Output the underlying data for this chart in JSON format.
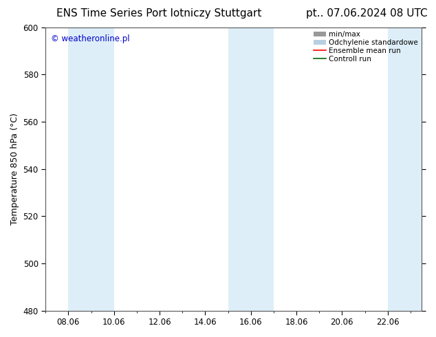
{
  "title_left": "ENS Time Series Port lotniczy Stuttgart",
  "title_right": "pt.. 07.06.2024 08 UTC",
  "ylabel": "Temperature 850 hPa (°C)",
  "watermark": "© weatheronline.pl",
  "watermark_color": "#0000cc",
  "xlim_start": 7.0,
  "xlim_end": 23.5,
  "ylim_bottom": 480,
  "ylim_top": 600,
  "yticks": [
    480,
    500,
    520,
    540,
    560,
    580,
    600
  ],
  "xtick_labels": [
    "08.06",
    "10.06",
    "12.06",
    "14.06",
    "16.06",
    "18.06",
    "20.06",
    "22.06"
  ],
  "xtick_positions": [
    8,
    10,
    12,
    14,
    16,
    18,
    20,
    22
  ],
  "shaded_bands": [
    {
      "x_start": 8.0,
      "x_end": 10.0
    },
    {
      "x_start": 15.0,
      "x_end": 17.0
    },
    {
      "x_start": 22.0,
      "x_end": 23.5
    }
  ],
  "band_color": "#ddeef8",
  "bg_color": "#ffffff",
  "plot_bg_color": "#ffffff",
  "legend_labels": [
    "min/max",
    "Odchylenie standardowe",
    "Ensemble mean run",
    "Controll run"
  ],
  "legend_colors_line": [
    "#aaaaaa",
    "#b8cfe0",
    "#ff0000",
    "#006400"
  ],
  "title_fontsize": 11,
  "label_fontsize": 9,
  "tick_fontsize": 8.5
}
